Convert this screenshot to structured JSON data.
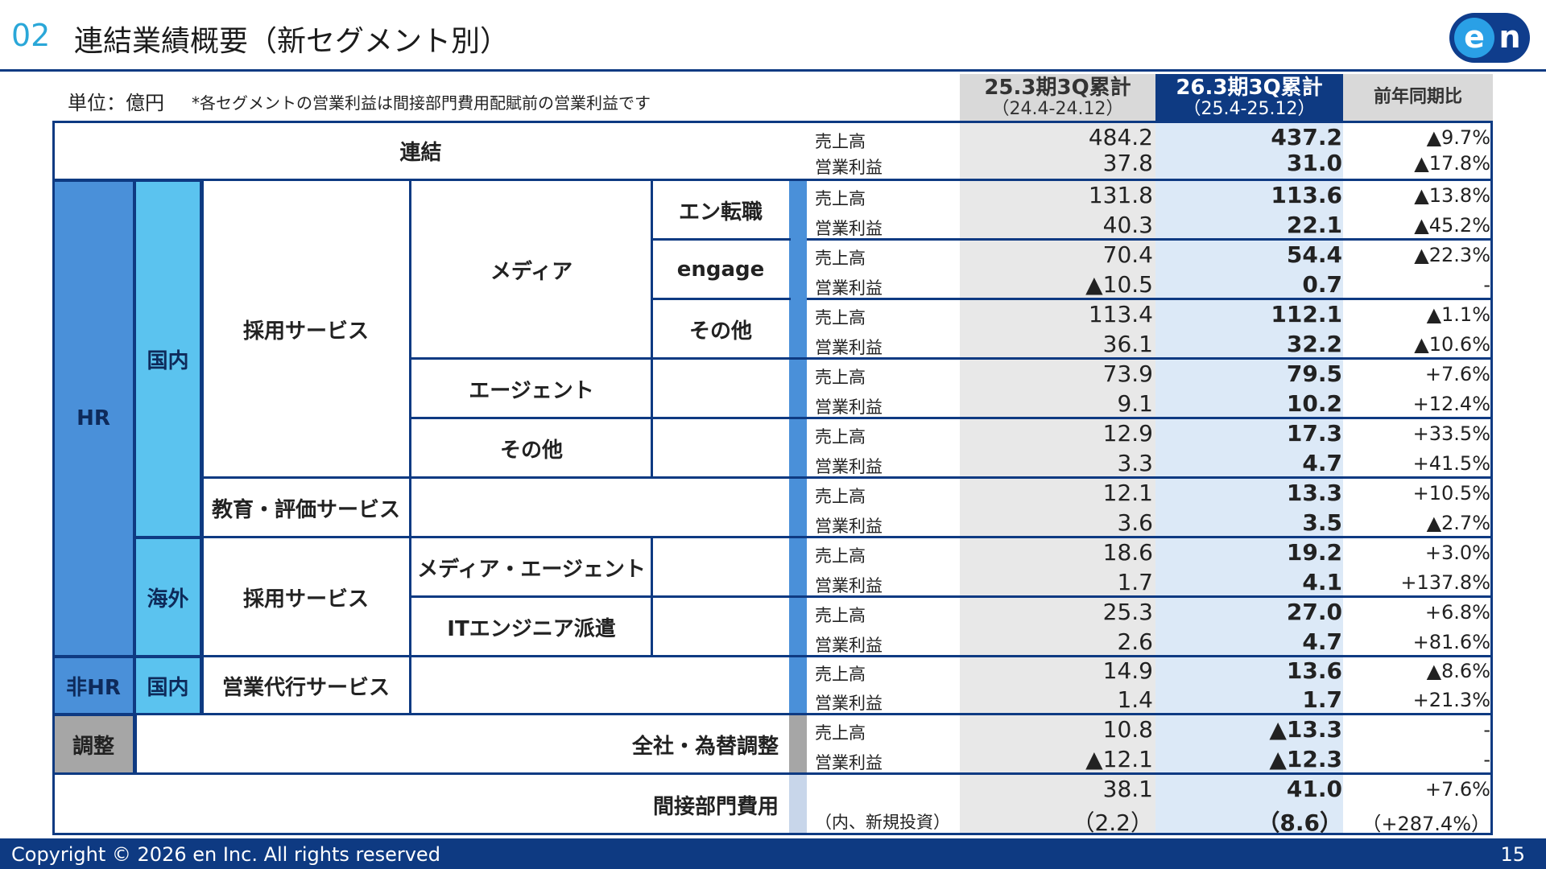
{
  "header": {
    "section_number": "02",
    "title": "連結業績概要（新セグメント別）",
    "logo": "en-logo"
  },
  "unit": "単位：億円",
  "note": "*各セグメントの営業利益は間接部門費用配賦前の営業利益です",
  "columns": {
    "prev": {
      "title": "25.3期3Q累計",
      "sub": "（24.4-24.12）"
    },
    "cur": {
      "title": "26.3期3Q累計",
      "sub": "（25.4-25.12）"
    },
    "yoy": {
      "title": "前年同期比"
    }
  },
  "segments": {
    "consolidated": "連結",
    "hr": "HR",
    "non_hr": "非HR",
    "adjust": "調整",
    "domestic": "国内",
    "overseas": "海外",
    "domestic2": "国内",
    "recruit": "採用サービス",
    "education": "教育・評価サービス",
    "recruit_overseas": "採用サービス",
    "sales_agency": "営業代行サービス",
    "media": "メディア",
    "agent": "エージェント",
    "other_recruit": "その他",
    "media_agent": "メディア・エージェント",
    "it_dispatch": "ITエンジニア派遣",
    "en_tenshoku": "エン転職",
    "engage": "engage",
    "other_media": "その他",
    "corp_fx": "全社・為替調整",
    "indirect": "間接部門費用"
  },
  "rows": [
    {
      "label": "売上高",
      "prev": "484.2",
      "cur": "437.2",
      "yoy": "▲9.7%"
    },
    {
      "label": "営業利益",
      "prev": "37.8",
      "cur": "31.0",
      "yoy": "▲17.8%"
    },
    {
      "label": "売上高",
      "prev": "131.8",
      "cur": "113.6",
      "yoy": "▲13.8%"
    },
    {
      "label": "営業利益",
      "prev": "40.3",
      "cur": "22.1",
      "yoy": "▲45.2%"
    },
    {
      "label": "売上高",
      "prev": "70.4",
      "cur": "54.4",
      "yoy": "▲22.3%"
    },
    {
      "label": "営業利益",
      "prev": "▲10.5",
      "cur": "0.7",
      "yoy": "-"
    },
    {
      "label": "売上高",
      "prev": "113.4",
      "cur": "112.1",
      "yoy": "▲1.1%"
    },
    {
      "label": "営業利益",
      "prev": "36.1",
      "cur": "32.2",
      "yoy": "▲10.6%"
    },
    {
      "label": "売上高",
      "prev": "73.9",
      "cur": "79.5",
      "yoy": "+7.6%"
    },
    {
      "label": "営業利益",
      "prev": "9.1",
      "cur": "10.2",
      "yoy": "+12.4%"
    },
    {
      "label": "売上高",
      "prev": "12.9",
      "cur": "17.3",
      "yoy": "+33.5%"
    },
    {
      "label": "営業利益",
      "prev": "3.3",
      "cur": "4.7",
      "yoy": "+41.5%"
    },
    {
      "label": "売上高",
      "prev": "12.1",
      "cur": "13.3",
      "yoy": "+10.5%"
    },
    {
      "label": "営業利益",
      "prev": "3.6",
      "cur": "3.5",
      "yoy": "▲2.7%"
    },
    {
      "label": "売上高",
      "prev": "18.6",
      "cur": "19.2",
      "yoy": "+3.0%"
    },
    {
      "label": "営業利益",
      "prev": "1.7",
      "cur": "4.1",
      "yoy": "+137.8%"
    },
    {
      "label": "売上高",
      "prev": "25.3",
      "cur": "27.0",
      "yoy": "+6.8%"
    },
    {
      "label": "営業利益",
      "prev": "2.6",
      "cur": "4.7",
      "yoy": "+81.6%"
    },
    {
      "label": "売上高",
      "prev": "14.9",
      "cur": "13.6",
      "yoy": "▲8.6%"
    },
    {
      "label": "営業利益",
      "prev": "1.4",
      "cur": "1.7",
      "yoy": "+21.3%"
    },
    {
      "label": "売上高",
      "prev": "10.8",
      "cur": "▲13.3",
      "yoy": "-"
    },
    {
      "label": "営業利益",
      "prev": "▲12.1",
      "cur": "▲12.3",
      "yoy": "-"
    },
    {
      "label": "",
      "prev": "38.1",
      "cur": "41.0",
      "yoy": "+7.6%"
    },
    {
      "label": "（内、新規投資）",
      "prev": "（2.2）",
      "cur": "（8.6）",
      "yoy": "（+287.4%）"
    }
  ],
  "footer": {
    "copyright": "Copyright © 2026 en Inc. All rights reserved",
    "page": "15"
  },
  "colors": {
    "navy": "#0e3a82",
    "hr_blue": "#4a90d9",
    "light_blue": "#5bc3ef",
    "gray": "#d9d9d9",
    "cur_bg": "#dce9f7"
  }
}
